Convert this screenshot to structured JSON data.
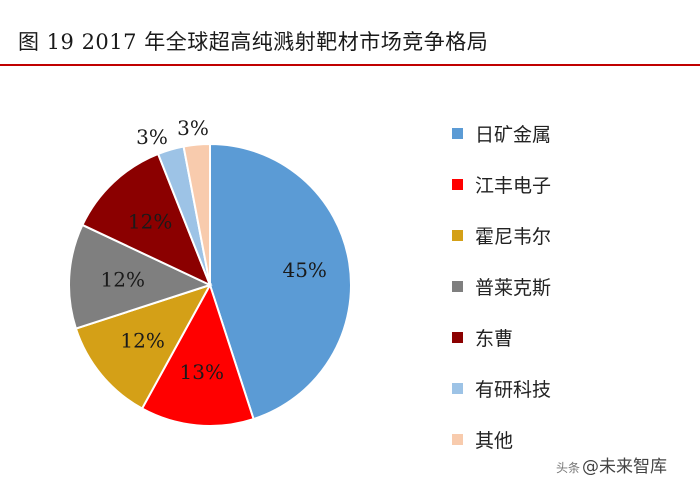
{
  "title": "图 19 2017 年全球超高纯溅射靶材市场竞争格局",
  "chart_data": {
    "type": "pie",
    "title": "图 19 2017 年全球超高纯溅射靶材市场竞争格局",
    "categories": [
      "日矿金属",
      "江丰电子",
      "霍尼韦尔",
      "普莱克斯",
      "东曹",
      "有研科技",
      "其他"
    ],
    "values": [
      45,
      13,
      12,
      12,
      12,
      3,
      3
    ],
    "labels": [
      "45%",
      "13%",
      "12%",
      "12%",
      "12%",
      "3%",
      "3%"
    ],
    "colors": [
      "#5b9bd5",
      "#ff0000",
      "#d4a017",
      "#7f7f7f",
      "#8b0000",
      "#9dc3e6",
      "#f8cbad"
    ],
    "legend_position": "right"
  },
  "watermark": {
    "prefix": "头条",
    "text": "@未来智库"
  }
}
